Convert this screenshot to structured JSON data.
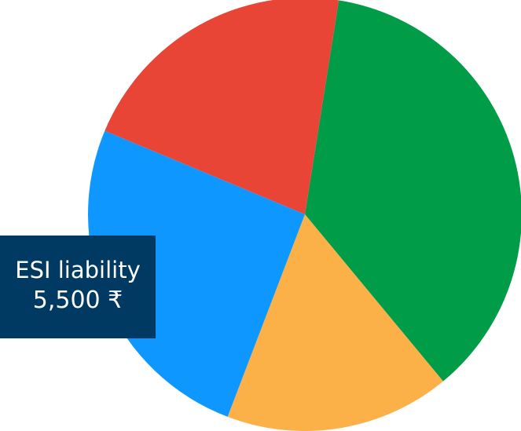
{
  "chart_data": {
    "type": "pie",
    "slices": [
      {
        "value": 36.5,
        "color": "#019c47"
      },
      {
        "value": 16.8,
        "color": "#fbb147"
      },
      {
        "value": 25.5,
        "color": "#0e98ff"
      },
      {
        "value": 21.2,
        "color": "#e94536"
      }
    ],
    "tooltip": {
      "label": "ESI liability",
      "value": "5,500 ₹"
    }
  }
}
